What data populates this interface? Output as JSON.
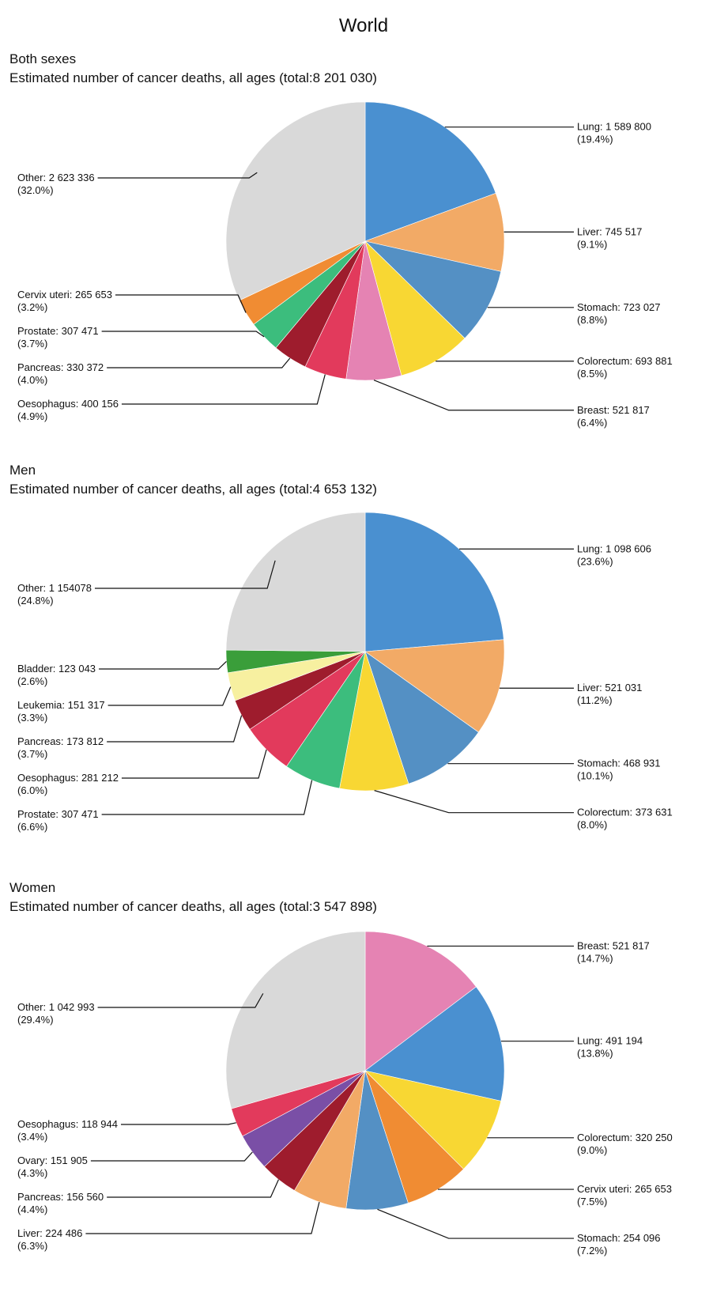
{
  "page_title": "World",
  "chart_data": [
    {
      "type": "pie",
      "group": "Both sexes",
      "title": "Estimated number of cancer deaths, all ages (total:8 201 030)",
      "slices": [
        {
          "name": "Lung",
          "value": "1 589 800",
          "percent": "19.4%",
          "share": 19.4,
          "color": "#4a90d0",
          "side": "right"
        },
        {
          "name": "Liver",
          "value": "745 517",
          "percent": "9.1%",
          "share": 9.1,
          "color": "#f2aa66",
          "side": "right"
        },
        {
          "name": "Stomach",
          "value": "723 027",
          "percent": "8.8%",
          "share": 8.8,
          "color": "#5490c4",
          "side": "right"
        },
        {
          "name": "Colorectum",
          "value": "693 881",
          "percent": "8.5%",
          "share": 8.5,
          "color": "#f8d733",
          "side": "right"
        },
        {
          "name": "Breast",
          "value": "521 817",
          "percent": "6.4%",
          "share": 6.4,
          "color": "#e583b3",
          "side": "right"
        },
        {
          "name": "Oesophagus",
          "value": "400 156",
          "percent": "4.9%",
          "share": 4.9,
          "color": "#e23a5c",
          "side": "left"
        },
        {
          "name": "Pancreas",
          "value": "330 372",
          "percent": "4.0%",
          "share": 4.0,
          "color": "#9e1c2d",
          "side": "left"
        },
        {
          "name": "Prostate",
          "value": "307 471",
          "percent": "3.7%",
          "share": 3.7,
          "color": "#3cbd7d",
          "side": "left"
        },
        {
          "name": "Cervix uteri",
          "value": "265 653",
          "percent": "3.2%",
          "share": 3.2,
          "color": "#f08c33",
          "side": "left"
        },
        {
          "name": "Other",
          "value": "2 623 336",
          "percent": "32.0%",
          "share": 32.0,
          "color": "#d9d9d9",
          "side": "left"
        }
      ]
    },
    {
      "type": "pie",
      "group": "Men",
      "title": "Estimated number of cancer deaths, all ages (total:4 653 132)",
      "slices": [
        {
          "name": "Lung",
          "value": "1 098 606",
          "percent": "23.6%",
          "share": 23.6,
          "color": "#4a90d0",
          "side": "right"
        },
        {
          "name": "Liver",
          "value": "521 031",
          "percent": "11.2%",
          "share": 11.2,
          "color": "#f2aa66",
          "side": "right"
        },
        {
          "name": "Stomach",
          "value": "468 931",
          "percent": "10.1%",
          "share": 10.1,
          "color": "#5490c4",
          "side": "right"
        },
        {
          "name": "Colorectum",
          "value": "373 631",
          "percent": "8.0%",
          "share": 8.0,
          "color": "#f8d733",
          "side": "right"
        },
        {
          "name": "Prostate",
          "value": "307 471",
          "percent": "6.6%",
          "share": 6.6,
          "color": "#3cbd7d",
          "side": "left"
        },
        {
          "name": "Oesophagus",
          "value": "281 212",
          "percent": "6.0%",
          "share": 6.0,
          "color": "#e23a5c",
          "side": "left"
        },
        {
          "name": "Pancreas",
          "value": "173 812",
          "percent": "3.7%",
          "share": 3.7,
          "color": "#9e1c2d",
          "side": "left"
        },
        {
          "name": "Leukemia",
          "value": "151 317",
          "percent": "3.3%",
          "share": 3.3,
          "color": "#f7f0a0",
          "side": "left"
        },
        {
          "name": "Bladder",
          "value": "123 043",
          "percent": "2.6%",
          "share": 2.6,
          "color": "#3a9e3a",
          "side": "left"
        },
        {
          "name": "Other",
          "value": "1 154078",
          "percent": "24.8%",
          "share": 24.8,
          "color": "#d9d9d9",
          "side": "left"
        }
      ]
    },
    {
      "type": "pie",
      "group": "Women",
      "title": "Estimated number of cancer deaths, all ages (total:3 547 898)",
      "slices": [
        {
          "name": "Breast",
          "value": "521 817",
          "percent": "14.7%",
          "share": 14.7,
          "color": "#e583b3",
          "side": "right"
        },
        {
          "name": "Lung",
          "value": "491 194",
          "percent": "13.8%",
          "share": 13.8,
          "color": "#4a90d0",
          "side": "right"
        },
        {
          "name": "Colorectum",
          "value": "320 250",
          "percent": "9.0%",
          "share": 9.0,
          "color": "#f8d733",
          "side": "right"
        },
        {
          "name": "Cervix uteri",
          "value": "265 653",
          "percent": "7.5%",
          "share": 7.5,
          "color": "#f08c33",
          "side": "right"
        },
        {
          "name": "Stomach",
          "value": "254 096",
          "percent": "7.2%",
          "share": 7.2,
          "color": "#5490c4",
          "side": "right"
        },
        {
          "name": "Liver",
          "value": "224 486",
          "percent": "6.3%",
          "share": 6.3,
          "color": "#f2aa66",
          "side": "left"
        },
        {
          "name": "Pancreas",
          "value": "156 560",
          "percent": "4.4%",
          "share": 4.4,
          "color": "#9e1c2d",
          "side": "left"
        },
        {
          "name": "Ovary",
          "value": "151 905",
          "percent": "4.3%",
          "share": 4.3,
          "color": "#7a4fa6",
          "side": "left"
        },
        {
          "name": "Oesophagus",
          "value": "118 944",
          "percent": "3.4%",
          "share": 3.4,
          "color": "#e23a5c",
          "side": "left"
        },
        {
          "name": "Other",
          "value": "1 042 993",
          "percent": "29.4%",
          "share": 29.4,
          "color": "#d9d9d9",
          "side": "left"
        }
      ]
    }
  ]
}
